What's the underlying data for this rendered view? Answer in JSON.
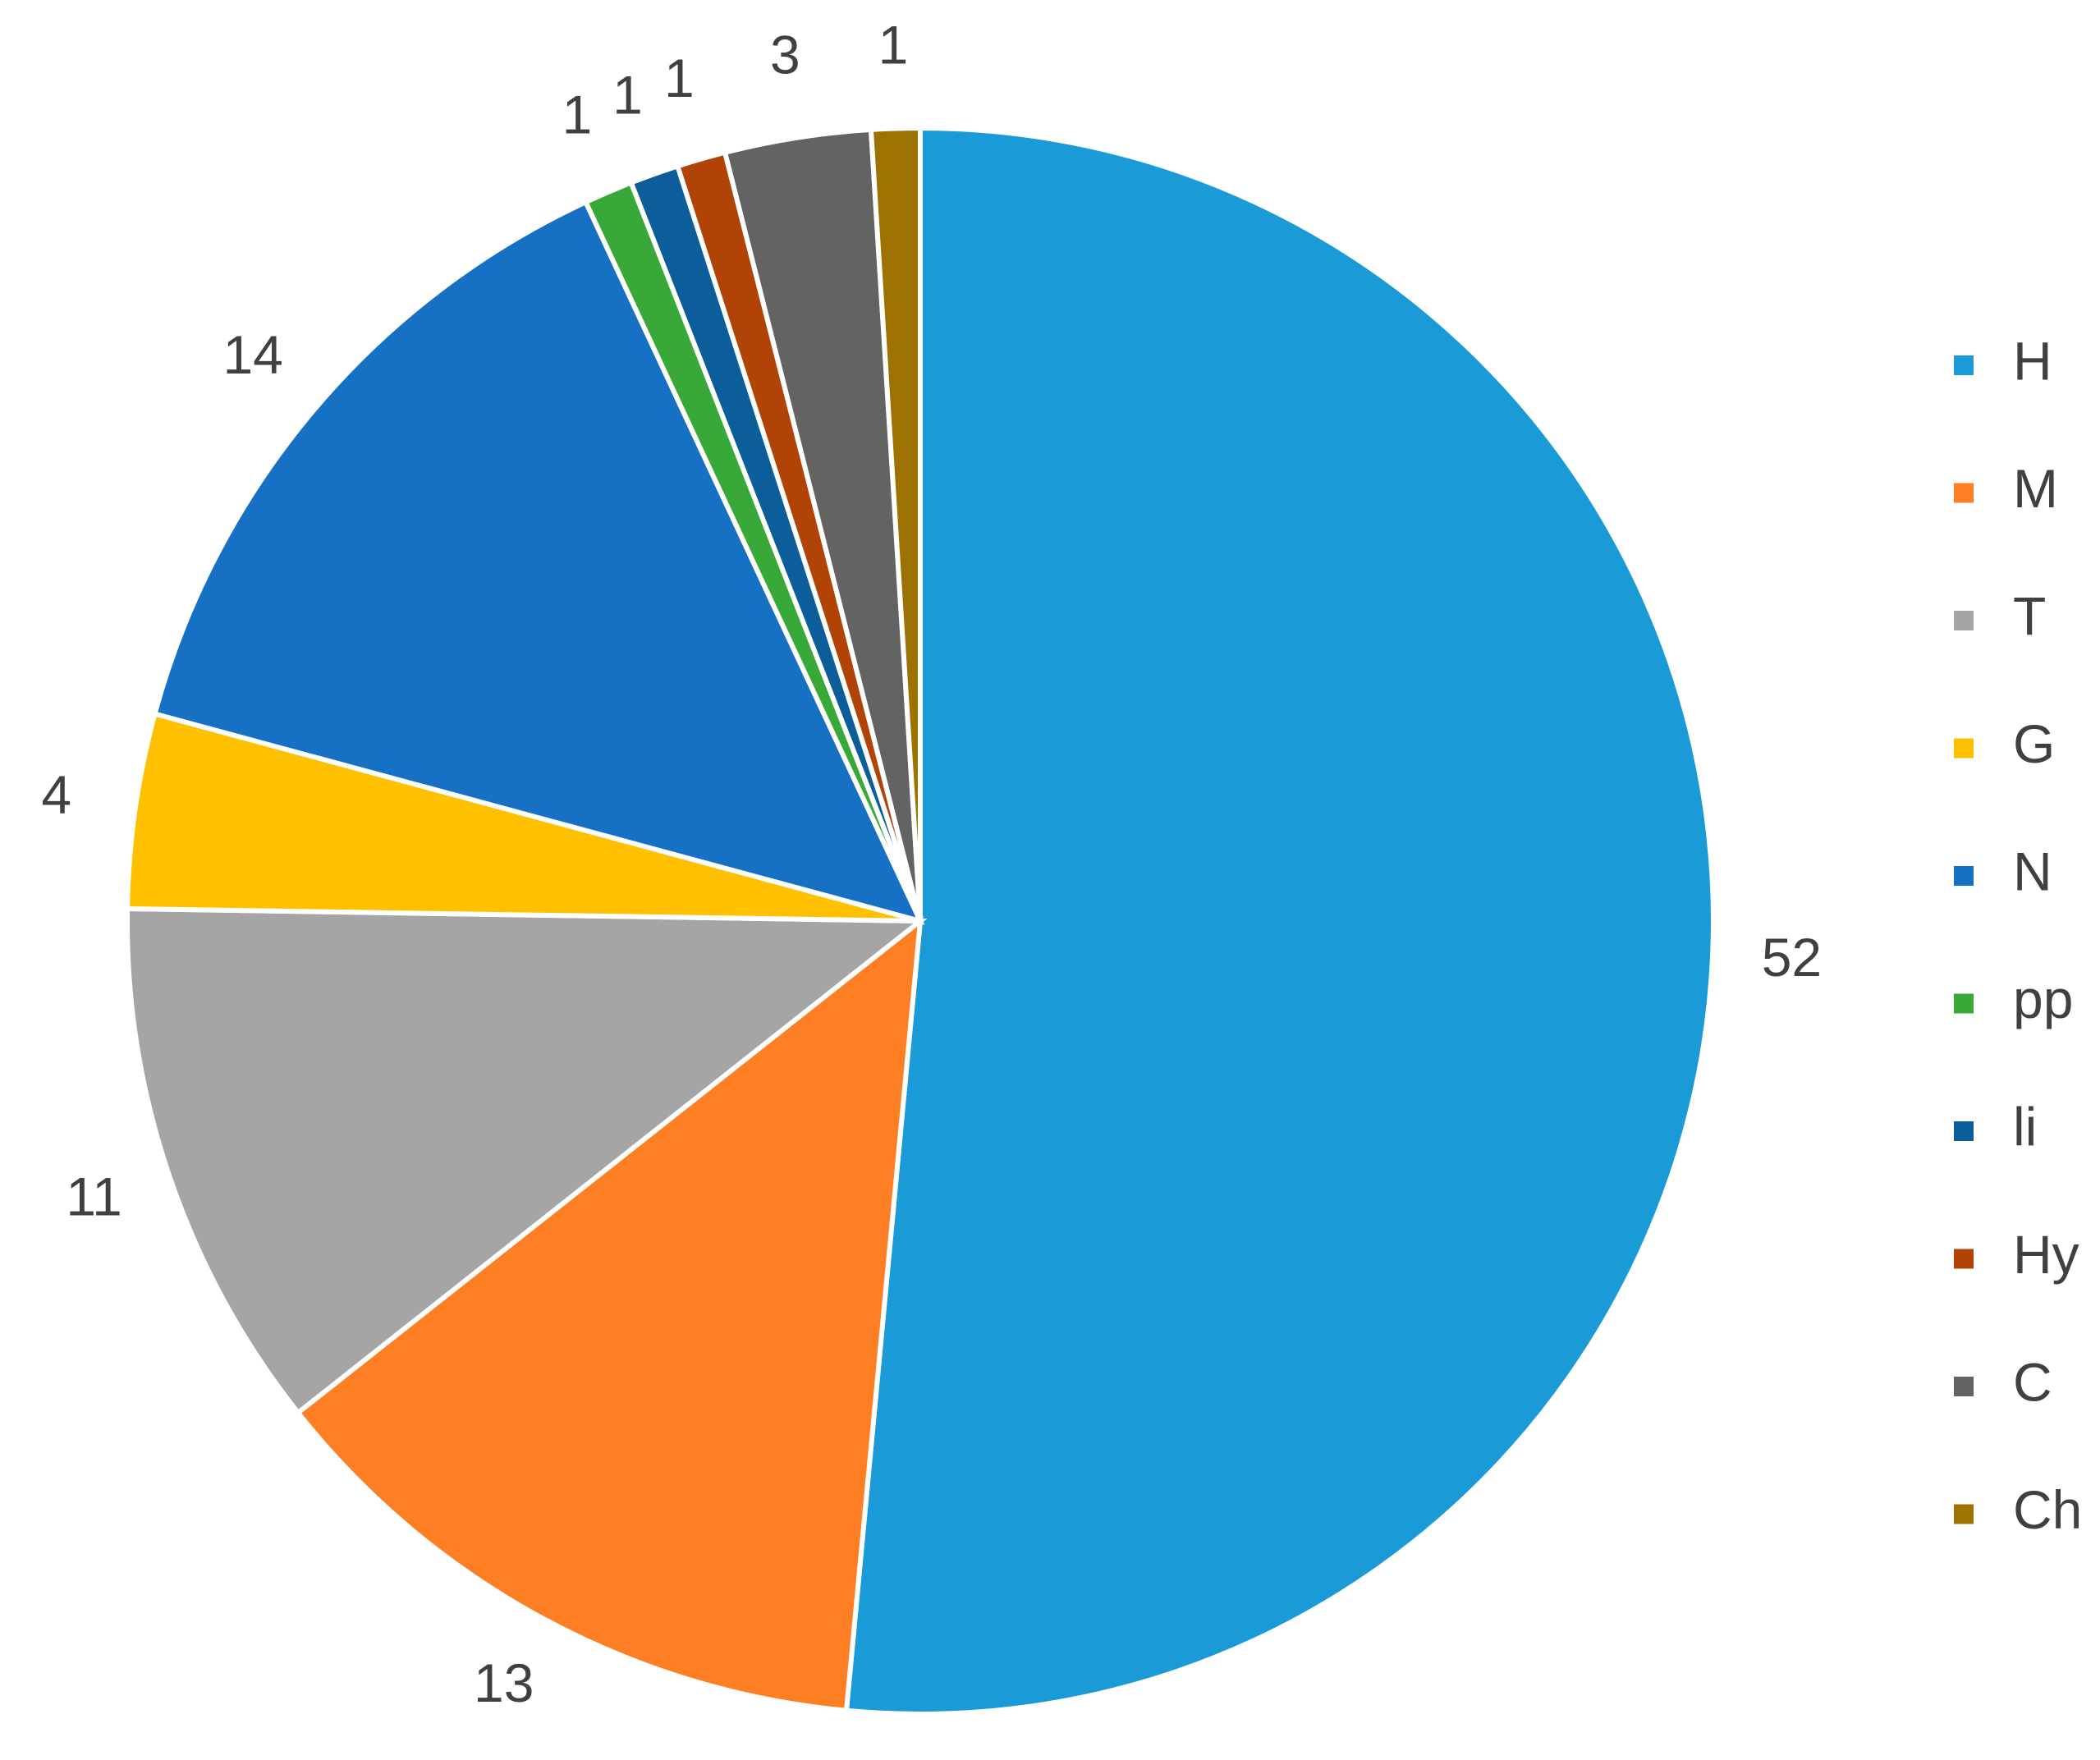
{
  "chart_data": {
    "type": "pie",
    "categories": [
      "H",
      "M",
      "T",
      "G",
      "N",
      "pp",
      "li",
      "Hy",
      "C",
      "Ch"
    ],
    "values": [
      52,
      13,
      11,
      4,
      14,
      1,
      1,
      1,
      3,
      1
    ],
    "colors": [
      "#1a9bd7",
      "#fd7e23",
      "#a5a5a5",
      "#ffc000",
      "#1670c4",
      "#38a939",
      "#0b5e99",
      "#b04305",
      "#636363",
      "#9e7200"
    ],
    "legend": "right"
  }
}
